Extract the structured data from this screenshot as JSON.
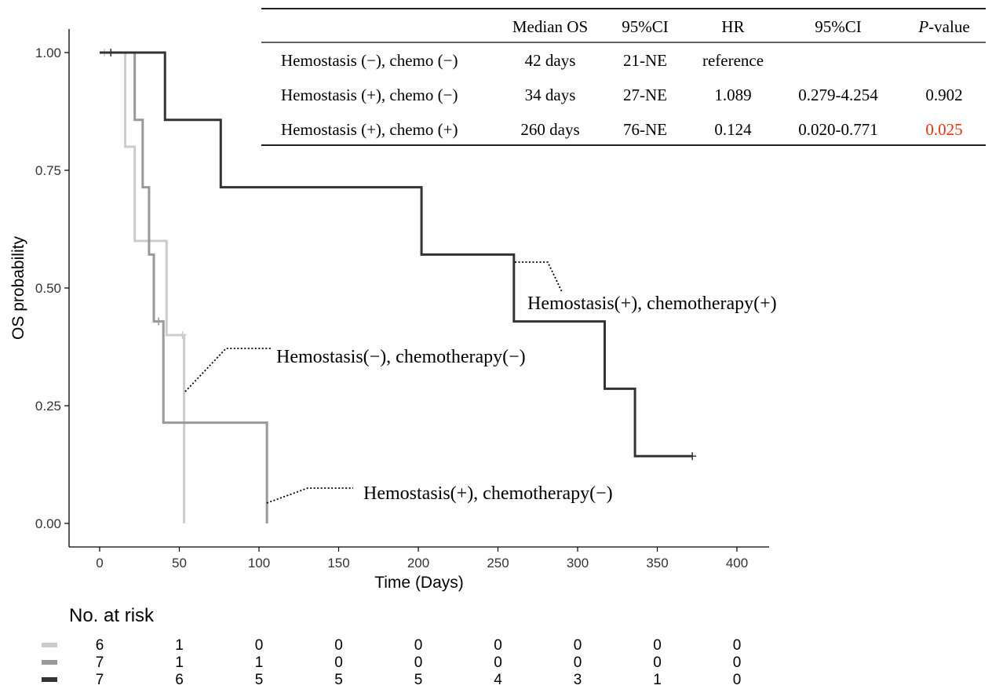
{
  "chart_data": {
    "type": "line",
    "subtype": "kaplan-meier",
    "xlabel": "Time (Days)",
    "ylabel": "OS probability",
    "xlim": [
      -20,
      420
    ],
    "ylim": [
      -0.05,
      1.05
    ],
    "x_ticks": [
      0,
      50,
      100,
      150,
      200,
      250,
      300,
      350,
      400
    ],
    "x_tick_labels": [
      "0",
      "50",
      "100",
      "150",
      "200",
      "250",
      "300",
      "350",
      "400"
    ],
    "y_ticks": [
      0,
      0.25,
      0.5,
      0.75,
      1.0
    ],
    "y_tick_labels": [
      "0.00",
      "0.25",
      "0.50",
      "0.75",
      "1.00"
    ],
    "grid": false,
    "series": [
      {
        "name": "Hemostasis(−), chemotherapy(−)",
        "color": "#cccccc",
        "steps": [
          [
            0,
            1.0
          ],
          [
            16,
            0.8
          ],
          [
            22,
            0.6
          ],
          [
            42,
            0.4
          ],
          [
            53,
            0.0
          ]
        ],
        "censor": [
          [
            3,
            1.0
          ],
          [
            52,
            0.4
          ]
        ]
      },
      {
        "name": "Hemostasis(+), chemotherapy(−)",
        "color": "#999999",
        "steps": [
          [
            0,
            1.0
          ],
          [
            22,
            0.857
          ],
          [
            27,
            0.714
          ],
          [
            31,
            0.571
          ],
          [
            34,
            0.429
          ],
          [
            40,
            0.214
          ],
          [
            105,
            0.0
          ]
        ],
        "censor": [
          [
            37,
            0.429
          ]
        ]
      },
      {
        "name": "Hemostasis(+), chemotherapy(+)",
        "color": "#333333",
        "steps": [
          [
            0,
            1.0
          ],
          [
            41,
            0.857
          ],
          [
            76,
            0.714
          ],
          [
            202,
            0.571
          ],
          [
            260,
            0.429
          ],
          [
            317,
            0.286
          ],
          [
            336,
            0.143
          ],
          [
            372,
            0.143
          ]
        ],
        "censor": [
          [
            7,
            1.0
          ],
          [
            372,
            0.143
          ]
        ]
      }
    ],
    "annotations": [
      {
        "text": "Hemostasis(+), chemotherapy(+)",
        "series": 2
      },
      {
        "text": "Hemostasis(−), chemotherapy(−)",
        "series": 0
      },
      {
        "text": "Hemostasis(+), chemotherapy(−)",
        "series": 1
      }
    ],
    "stats_table": {
      "headers": [
        "",
        "Median OS",
        "95%CI",
        "HR",
        "95%CI",
        "P-value"
      ],
      "rows": [
        [
          "Hemostasis (−), chemo (−)",
          "42 days",
          "21-NE",
          "reference",
          "",
          ""
        ],
        [
          "Hemostasis (+), chemo (−)",
          "34 days",
          "27-NE",
          "1.089",
          "0.279-4.254",
          "0.902"
        ],
        [
          "Hemostasis (+), chemo (+)",
          "260 days",
          "76-NE",
          "0.124",
          "0.020-0.771",
          "0.025"
        ]
      ],
      "highlight_color": "#e8320a"
    },
    "risk_table": {
      "title": "No. at risk",
      "times": [
        0,
        50,
        100,
        150,
        200,
        250,
        300,
        350,
        400
      ],
      "rows": [
        {
          "series": 0,
          "values": [
            "6",
            "1",
            "0",
            "0",
            "0",
            "0",
            "0",
            "0",
            "0"
          ]
        },
        {
          "series": 1,
          "values": [
            "7",
            "1",
            "1",
            "0",
            "0",
            "0",
            "0",
            "0",
            "0"
          ]
        },
        {
          "series": 2,
          "values": [
            "7",
            "6",
            "5",
            "5",
            "5",
            "4",
            "3",
            "1",
            "0"
          ]
        }
      ]
    }
  }
}
